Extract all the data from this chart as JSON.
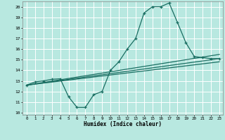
{
  "title": "",
  "xlabel": "Humidex (Indice chaleur)",
  "ylabel": "",
  "bg_color": "#b8e8e0",
  "grid_color": "#ffffff",
  "line_color": "#1a6e62",
  "xlim": [
    -0.5,
    23.4
  ],
  "ylim": [
    9.8,
    20.5
  ],
  "yticks": [
    10,
    11,
    12,
    13,
    14,
    15,
    16,
    17,
    18,
    19,
    20
  ],
  "xticks": [
    0,
    1,
    2,
    3,
    4,
    5,
    6,
    7,
    8,
    9,
    10,
    11,
    12,
    13,
    14,
    15,
    16,
    17,
    18,
    19,
    20,
    21,
    22,
    23
  ],
  "main_x": [
    0,
    1,
    2,
    3,
    4,
    5,
    6,
    7,
    8,
    9,
    10,
    11,
    12,
    13,
    14,
    15,
    16,
    17,
    18,
    19,
    20,
    21,
    22,
    23
  ],
  "main_y": [
    12.6,
    12.9,
    13.0,
    13.15,
    13.2,
    11.5,
    10.5,
    10.5,
    11.7,
    12.0,
    14.0,
    14.8,
    16.0,
    17.0,
    19.4,
    20.0,
    20.0,
    20.35,
    18.5,
    16.6,
    15.3,
    15.2,
    15.1,
    15.1
  ],
  "line2_x": [
    0,
    23
  ],
  "line2_y": [
    12.6,
    15.5
  ],
  "line3_x": [
    0,
    23
  ],
  "line3_y": [
    12.6,
    14.8
  ],
  "line4_x": [
    0,
    23
  ],
  "line4_y": [
    12.6,
    15.1
  ]
}
